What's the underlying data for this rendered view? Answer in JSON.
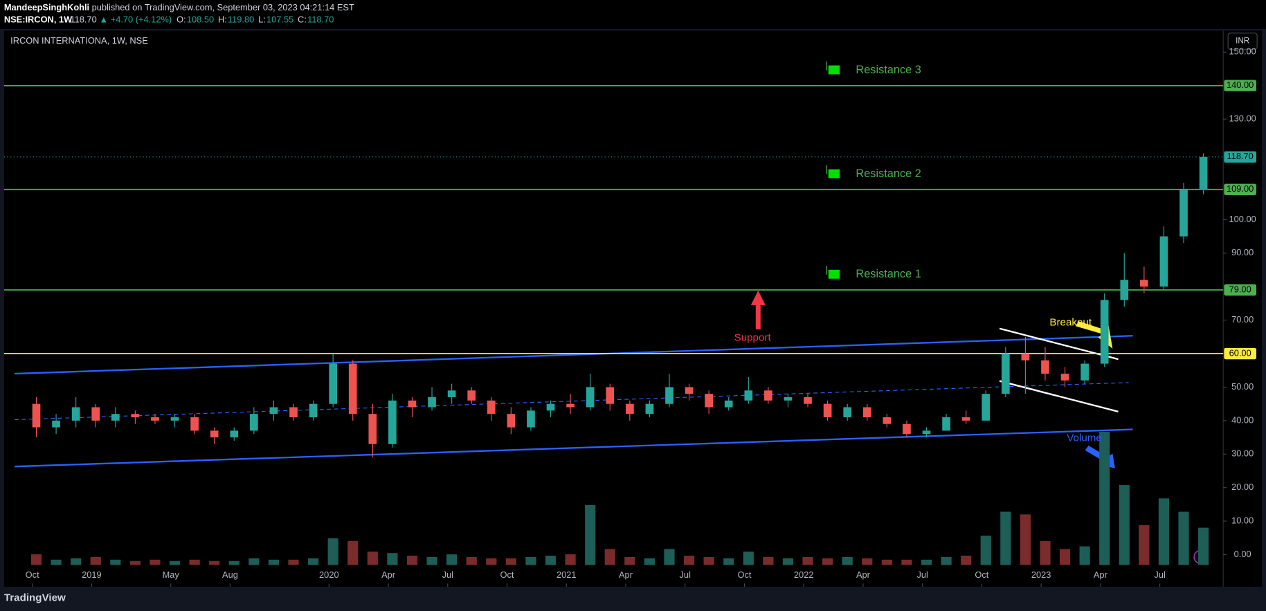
{
  "header": {
    "publisher": "MandeepSinghKohli",
    "published": "published on TradingView.com, September 03, 2023 04:21:14 EST",
    "symbol": "NSE:IRCON, 1W",
    "last": "118.70",
    "change": "▲ +4.70 (+4.12%)",
    "ohlc": [
      {
        "label": "O:",
        "value": "108.50"
      },
      {
        "label": "H:",
        "value": "119.80"
      },
      {
        "label": "L:",
        "value": "107.55"
      },
      {
        "label": "C:",
        "value": "118.70"
      }
    ]
  },
  "footer": {
    "brand": "TradingView"
  },
  "chart_data": {
    "type": "candlestick",
    "title": "IRCON INTERNATIONA, 1W, NSE",
    "currency": "INR",
    "x": [
      "2018-10",
      "2018-11",
      "2018-12",
      "2019-01",
      "2019-02",
      "2019-03",
      "2019-04",
      "2019-05",
      "2019-06",
      "2019-07",
      "2019-08",
      "2019-09",
      "2019-10",
      "2019-11",
      "2019-12",
      "2020-01",
      "2020-02",
      "2020-03",
      "2020-04",
      "2020-05",
      "2020-06",
      "2020-07",
      "2020-08",
      "2020-09",
      "2020-10",
      "2020-11",
      "2020-12",
      "2021-01",
      "2021-02",
      "2021-03",
      "2021-04",
      "2021-05",
      "2021-06",
      "2021-07",
      "2021-08",
      "2021-09",
      "2021-10",
      "2021-11",
      "2021-12",
      "2022-01",
      "2022-02",
      "2022-03",
      "2022-04",
      "2022-05",
      "2022-06",
      "2022-07",
      "2022-08",
      "2022-09",
      "2022-10",
      "2022-11",
      "2022-12",
      "2023-01",
      "2023-02",
      "2023-03",
      "2023-04",
      "2023-05",
      "2023-06",
      "2023-07",
      "2023-08",
      "2023-09"
    ],
    "open": [
      45,
      38,
      40,
      44,
      40,
      42,
      41,
      40,
      41,
      37,
      35,
      37,
      42,
      44,
      41,
      45,
      57,
      42,
      33,
      46,
      44,
      47,
      49,
      46,
      42,
      38,
      43,
      45,
      44,
      50,
      45,
      42,
      45,
      50,
      48,
      44,
      46,
      49,
      46,
      47,
      45,
      41,
      44,
      41,
      39,
      36,
      37,
      41,
      40,
      48,
      60,
      58,
      54,
      52,
      57,
      76,
      82,
      80,
      95,
      109
    ],
    "high": [
      47,
      42,
      47,
      45,
      44,
      43,
      42,
      42,
      42,
      38,
      38,
      44,
      46,
      45,
      46,
      60,
      58,
      45,
      48,
      47,
      50,
      51,
      50,
      47,
      44,
      44,
      46,
      48,
      54,
      51,
      46,
      46,
      54,
      51,
      49,
      47,
      53,
      50,
      48,
      48,
      46,
      45,
      45,
      42,
      40,
      38,
      42,
      43,
      49,
      62,
      65,
      62,
      56,
      58,
      78,
      90,
      86,
      98,
      111,
      119.8
    ],
    "low": [
      35,
      36,
      38,
      38,
      38,
      39,
      39,
      38,
      36,
      33,
      34,
      36,
      40,
      40,
      40,
      44,
      40,
      29,
      32,
      41,
      43,
      45,
      45,
      40,
      36,
      37,
      41,
      42,
      43,
      43,
      40,
      41,
      44,
      46,
      42,
      43,
      45,
      45,
      44,
      44,
      40,
      40,
      40,
      38,
      35,
      35,
      37,
      39,
      40,
      47,
      48,
      52,
      50,
      51,
      56,
      74,
      78,
      79,
      93,
      107.55
    ],
    "close": [
      38,
      40,
      44,
      40,
      42,
      41,
      40,
      41,
      37,
      35,
      37,
      42,
      44,
      41,
      45,
      57,
      42,
      33,
      46,
      44,
      47,
      49,
      46,
      42,
      38,
      43,
      45,
      44,
      50,
      45,
      42,
      45,
      50,
      48,
      44,
      46,
      49,
      46,
      47,
      45,
      41,
      44,
      41,
      39,
      36,
      37,
      41,
      40,
      48,
      60,
      58,
      54,
      52,
      57,
      76,
      82,
      80,
      95,
      109,
      118.7
    ],
    "volume": [
      8,
      4,
      5,
      6,
      4,
      3,
      4,
      3,
      4,
      3,
      3,
      5,
      4,
      4,
      5,
      20,
      18,
      10,
      9,
      7,
      6,
      8,
      6,
      5,
      5,
      6,
      7,
      8,
      45,
      12,
      6,
      5,
      12,
      7,
      6,
      5,
      10,
      6,
      5,
      6,
      5,
      6,
      5,
      4,
      4,
      4,
      6,
      7,
      22,
      40,
      38,
      18,
      12,
      14,
      100,
      60,
      30,
      50,
      40,
      28
    ],
    "up_color": "#26a69a",
    "down_color": "#ef5350",
    "volume_up_color": "#1d5e57",
    "volume_down_color": "#7a2b2b",
    "ylim": [
      -9.6,
      156.4
    ],
    "vlim": [
      0,
      100
    ],
    "yticks": [
      {
        "value": 0,
        "label": "0.00"
      },
      {
        "value": 10,
        "label": "10.00"
      },
      {
        "value": 20,
        "label": "20.00"
      },
      {
        "value": 30,
        "label": "30.00"
      },
      {
        "value": 40,
        "label": "40.00"
      },
      {
        "value": 50,
        "label": "50.00"
      },
      {
        "value": 70,
        "label": "70.00"
      },
      {
        "value": 90,
        "label": "90.00"
      },
      {
        "value": 100,
        "label": "100.00"
      },
      {
        "value": 130,
        "label": "130.00"
      },
      {
        "value": 150,
        "label": "150.00"
      }
    ],
    "xticks": [
      {
        "value": "2018-10",
        "label": "Oct"
      },
      {
        "value": "2019-01",
        "label": "2019"
      },
      {
        "value": "2019-05",
        "label": "May"
      },
      {
        "value": "2019-08",
        "label": "Aug"
      },
      {
        "value": "2020-01",
        "label": "2020"
      },
      {
        "value": "2020-04",
        "label": "Apr"
      },
      {
        "value": "2020-07",
        "label": "Jul"
      },
      {
        "value": "2020-10",
        "label": "Oct"
      },
      {
        "value": "2021-01",
        "label": "2021"
      },
      {
        "value": "2021-04",
        "label": "Apr"
      },
      {
        "value": "2021-07",
        "label": "Jul"
      },
      {
        "value": "2021-10",
        "label": "Oct"
      },
      {
        "value": "2022-01",
        "label": "2022"
      },
      {
        "value": "2022-04",
        "label": "Apr"
      },
      {
        "value": "2022-07",
        "label": "Jul"
      },
      {
        "value": "2022-10",
        "label": "Oct"
      },
      {
        "value": "2023-01",
        "label": "2023"
      },
      {
        "value": "2023-04",
        "label": "Apr"
      },
      {
        "value": "2023-07",
        "label": "Jul"
      }
    ],
    "price_lines": [
      {
        "value": 140,
        "label": "140.00",
        "color": "#4caf50"
      },
      {
        "value": 118.7,
        "label": "118.70",
        "color": "#26a69a",
        "dotted": true
      },
      {
        "value": 109,
        "label": "109.00",
        "color": "#4caf50"
      },
      {
        "value": 79,
        "label": "79.00",
        "color": "#4caf50"
      },
      {
        "value": 60,
        "label": "60.00",
        "color": "#ffeb3b"
      }
    ],
    "levels": [
      {
        "text": "Resistance 3",
        "value": 140
      },
      {
        "text": "Resistance 2",
        "value": 109
      },
      {
        "text": "Resistance 1",
        "value": 79
      }
    ],
    "annotations": [
      {
        "text": "Support",
        "color": "#f23645"
      },
      {
        "text": "Breakout",
        "color": "#ffeb3b"
      },
      {
        "text": "Volume",
        "color": "#2962ff"
      }
    ]
  }
}
